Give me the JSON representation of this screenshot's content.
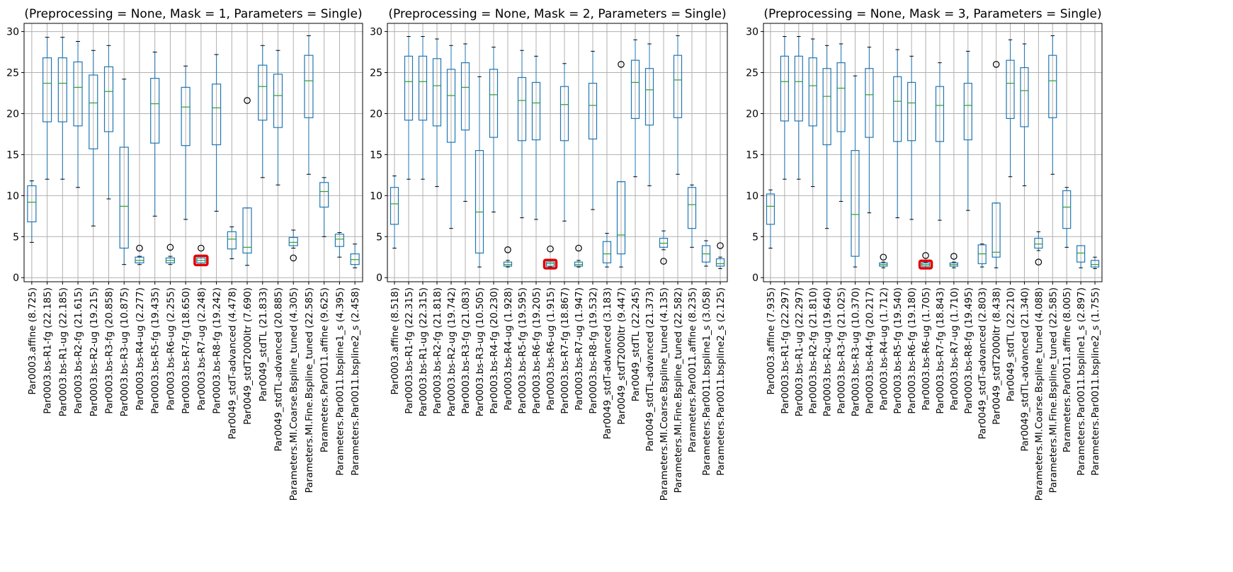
{
  "figure": {
    "colors": {
      "box": "#1f77b4",
      "median": "#2ca02c",
      "grid": "#b0b0b0",
      "axis": "#000000",
      "highlight": "#e00000"
    }
  },
  "chart_data": [
    {
      "type": "box",
      "title": "(Preprocessing = None, Mask = 1, Parameters = Single)",
      "ylim": [
        -0.5,
        31
      ],
      "yticks": [
        0,
        5,
        10,
        15,
        20,
        25,
        30
      ],
      "grid": true,
      "categories": [
        "Par0003.affine (8.725)",
        "Par0003.bs-R1-fg (22.185)",
        "Par0003.bs-R1-ug (22.185)",
        "Par0003.bs-R2-fg (21.615)",
        "Par0003.bs-R2-ug (19.215)",
        "Par0003.bs-R3-fg (20.858)",
        "Par0003.bs-R3-ug (10.875)",
        "Par0003.bs-R4-ug (2.277)",
        "Par0003.bs-R5-fg (19.435)",
        "Par0003.bs-R6-ug (2.255)",
        "Par0003.bs-R7-fg (18.650)",
        "Par0003.bs-R7-ug (2.248)",
        "Par0003.bs-R8-fg (19.242)",
        "Par0049_stdT-advanced (4.478)",
        "Par0049_stdT2000itr (7.690)",
        "Par0049_stdTL (21.833)",
        "Par0049_stdTL-advanced (20.885)",
        "Parameters.MI.Coarse.Bspline_tuned (4.305)",
        "Parameters.MI.Fine.Bspline_tuned (22.585)",
        "Parameters.Par0011.affine (9.625)",
        "Parameters.Par0011.bspline1_s (4.395)",
        "Parameters.Par0011.bspline2_s (2.458)"
      ],
      "boxes": [
        {
          "whislo": 4.3,
          "q1": 6.8,
          "med": 9.2,
          "q3": 11.2,
          "whishi": 11.8,
          "fliers": []
        },
        {
          "whislo": 12.0,
          "q1": 19.0,
          "med": 23.7,
          "q3": 26.8,
          "whishi": 29.3,
          "fliers": []
        },
        {
          "whislo": 12.0,
          "q1": 19.0,
          "med": 23.7,
          "q3": 26.8,
          "whishi": 29.3,
          "fliers": []
        },
        {
          "whislo": 11.0,
          "q1": 18.5,
          "med": 23.2,
          "q3": 26.3,
          "whishi": 28.8,
          "fliers": []
        },
        {
          "whislo": 6.3,
          "q1": 15.7,
          "med": 21.3,
          "q3": 24.7,
          "whishi": 27.7,
          "fliers": []
        },
        {
          "whislo": 9.6,
          "q1": 17.8,
          "med": 22.7,
          "q3": 25.7,
          "whishi": 28.3,
          "fliers": []
        },
        {
          "whislo": 1.6,
          "q1": 3.6,
          "med": 8.7,
          "q3": 15.9,
          "whishi": 24.2,
          "fliers": []
        },
        {
          "whislo": 1.6,
          "q1": 1.8,
          "med": 2.1,
          "q3": 2.5,
          "whishi": 2.6,
          "fliers": [
            3.6
          ]
        },
        {
          "whislo": 7.5,
          "q1": 16.4,
          "med": 21.2,
          "q3": 24.3,
          "whishi": 27.5,
          "fliers": []
        },
        {
          "whislo": 1.6,
          "q1": 1.8,
          "med": 2.1,
          "q3": 2.4,
          "whishi": 2.6,
          "fliers": [
            3.7
          ]
        },
        {
          "whislo": 7.1,
          "q1": 16.1,
          "med": 20.8,
          "q3": 23.2,
          "whishi": 25.8,
          "fliers": []
        },
        {
          "whislo": 1.6,
          "q1": 1.8,
          "med": 2.1,
          "q3": 2.4,
          "whishi": 2.6,
          "fliers": [
            3.6
          ]
        },
        {
          "whislo": 8.1,
          "q1": 16.2,
          "med": 20.7,
          "q3": 23.6,
          "whishi": 27.2,
          "fliers": []
        },
        {
          "whislo": 2.3,
          "q1": 3.5,
          "med": 4.7,
          "q3": 5.6,
          "whishi": 6.2,
          "fliers": []
        },
        {
          "whislo": 1.5,
          "q1": 3.0,
          "med": 3.7,
          "q3": 8.5,
          "whishi": 8.5,
          "fliers": [
            21.6
          ]
        },
        {
          "whislo": 12.2,
          "q1": 19.2,
          "med": 23.3,
          "q3": 25.9,
          "whishi": 28.3,
          "fliers": []
        },
        {
          "whislo": 11.3,
          "q1": 18.3,
          "med": 22.2,
          "q3": 24.8,
          "whishi": 27.7,
          "fliers": []
        },
        {
          "whislo": 3.6,
          "q1": 3.9,
          "med": 4.3,
          "q3": 4.9,
          "whishi": 5.8,
          "fliers": [
            2.4
          ]
        },
        {
          "whislo": 12.6,
          "q1": 19.5,
          "med": 24.0,
          "q3": 27.1,
          "whishi": 29.5,
          "fliers": []
        },
        {
          "whislo": 5.0,
          "q1": 8.6,
          "med": 10.5,
          "q3": 11.6,
          "whishi": 12.2,
          "fliers": []
        },
        {
          "whislo": 2.5,
          "q1": 3.8,
          "med": 4.7,
          "q3": 5.3,
          "whishi": 5.5,
          "fliers": []
        },
        {
          "whislo": 1.2,
          "q1": 1.6,
          "med": 2.2,
          "q3": 2.9,
          "whishi": 4.1,
          "fliers": []
        }
      ],
      "highlight_index": 11
    },
    {
      "type": "box",
      "title": "(Preprocessing = None, Mask = 2, Parameters = Single)",
      "ylim": [
        -0.5,
        31
      ],
      "yticks": [
        0,
        5,
        10,
        15,
        20,
        25,
        30
      ],
      "grid": true,
      "categories": [
        "Par0003.affine (8.518)",
        "Par0003.bs-R1-fg (22.315)",
        "Par0003.bs-R1-ug (22.315)",
        "Par0003.bs-R2-fg (21.818)",
        "Par0003.bs-R2-ug (19.742)",
        "Par0003.bs-R3-fg (21.083)",
        "Par0003.bs-R3-ug (10.505)",
        "Par0003.bs-R4-fg (20.230)",
        "Par0003.bs-R4-ug (1.928)",
        "Par0003.bs-R5-fg (19.595)",
        "Par0003.bs-R6-fg (19.205)",
        "Par0003.bs-R6-ug (1.915)",
        "Par0003.bs-R7-fg (18.867)",
        "Par0003.bs-R7-ug (1.947)",
        "Par0003.bs-R8-fg (19.532)",
        "Par0049_stdT-advanced (3.183)",
        "Par0049_stdT2000itr (9.447)",
        "Par0049_stdTL (22.245)",
        "Par0049_stdTL-advanced (21.373)",
        "Parameters.MI.Coarse.Bspline_tuned (4.135)",
        "Parameters.MI.Fine.Bspline_tuned (22.582)",
        "Parameters.Par0011.affine (8.235)",
        "Parameters.Par0011.bspline1_s (3.058)",
        "Parameters.Par0011.bspline2_s (2.125)"
      ],
      "boxes": [
        {
          "whislo": 3.6,
          "q1": 6.5,
          "med": 9.0,
          "q3": 11.0,
          "whishi": 12.4,
          "fliers": []
        },
        {
          "whislo": 12.0,
          "q1": 19.2,
          "med": 23.9,
          "q3": 27.0,
          "whishi": 29.4,
          "fliers": []
        },
        {
          "whislo": 12.0,
          "q1": 19.2,
          "med": 23.9,
          "q3": 27.0,
          "whishi": 29.4,
          "fliers": []
        },
        {
          "whislo": 11.1,
          "q1": 18.5,
          "med": 23.4,
          "q3": 26.7,
          "whishi": 29.1,
          "fliers": []
        },
        {
          "whislo": 6.0,
          "q1": 16.5,
          "med": 22.2,
          "q3": 25.4,
          "whishi": 28.3,
          "fliers": []
        },
        {
          "whislo": 9.3,
          "q1": 18.0,
          "med": 23.2,
          "q3": 26.2,
          "whishi": 28.5,
          "fliers": []
        },
        {
          "whislo": 1.3,
          "q1": 3.0,
          "med": 8.0,
          "q3": 15.5,
          "whishi": 24.5,
          "fliers": []
        },
        {
          "whislo": 8.0,
          "q1": 17.1,
          "med": 22.3,
          "q3": 25.4,
          "whishi": 28.1,
          "fliers": []
        },
        {
          "whislo": 1.3,
          "q1": 1.4,
          "med": 1.6,
          "q3": 1.9,
          "whishi": 2.1,
          "fliers": [
            3.4
          ]
        },
        {
          "whislo": 7.3,
          "q1": 16.7,
          "med": 21.6,
          "q3": 24.4,
          "whishi": 27.7,
          "fliers": []
        },
        {
          "whislo": 7.1,
          "q1": 16.8,
          "med": 21.3,
          "q3": 23.8,
          "whishi": 27.0,
          "fliers": []
        },
        {
          "whislo": 1.3,
          "q1": 1.4,
          "med": 1.7,
          "q3": 1.9,
          "whishi": 2.1,
          "fliers": [
            3.5
          ]
        },
        {
          "whislo": 6.9,
          "q1": 16.7,
          "med": 21.1,
          "q3": 23.3,
          "whishi": 26.1,
          "fliers": []
        },
        {
          "whislo": 1.3,
          "q1": 1.4,
          "med": 1.6,
          "q3": 1.9,
          "whishi": 2.1,
          "fliers": [
            3.6
          ]
        },
        {
          "whislo": 8.3,
          "q1": 16.9,
          "med": 21.0,
          "q3": 23.7,
          "whishi": 27.6,
          "fliers": []
        },
        {
          "whislo": 1.3,
          "q1": 1.8,
          "med": 2.9,
          "q3": 4.4,
          "whishi": 5.4,
          "fliers": []
        },
        {
          "whislo": 1.3,
          "q1": 2.9,
          "med": 5.2,
          "q3": 11.7,
          "whishi": 11.7,
          "fliers": [
            26.0
          ]
        },
        {
          "whislo": 12.3,
          "q1": 19.4,
          "med": 23.8,
          "q3": 26.5,
          "whishi": 29.0,
          "fliers": []
        },
        {
          "whislo": 11.2,
          "q1": 18.6,
          "med": 22.9,
          "q3": 25.5,
          "whishi": 28.5,
          "fliers": []
        },
        {
          "whislo": 3.4,
          "q1": 3.7,
          "med": 4.2,
          "q3": 4.8,
          "whishi": 5.7,
          "fliers": [
            2.0
          ]
        },
        {
          "whislo": 12.6,
          "q1": 19.5,
          "med": 24.1,
          "q3": 27.1,
          "whishi": 29.5,
          "fliers": []
        },
        {
          "whislo": 3.7,
          "q1": 6.0,
          "med": 8.9,
          "q3": 11.0,
          "whishi": 11.3,
          "fliers": []
        },
        {
          "whislo": 1.4,
          "q1": 1.9,
          "med": 2.9,
          "q3": 3.9,
          "whishi": 4.5,
          "fliers": []
        },
        {
          "whislo": 1.1,
          "q1": 1.4,
          "med": 1.7,
          "q3": 2.3,
          "whishi": 2.5,
          "fliers": [
            3.9
          ]
        }
      ],
      "highlight_index": 11
    },
    {
      "type": "box",
      "title": "(Preprocessing = None, Mask = 3, Parameters = Single)",
      "ylim": [
        -0.5,
        31
      ],
      "yticks": [
        0,
        5,
        10,
        15,
        20,
        25,
        30
      ],
      "grid": true,
      "categories": [
        "Par0003.affine (7.935)",
        "Par0003.bs-R1-fg (22.297)",
        "Par0003.bs-R1-ug (22.297)",
        "Par0003.bs-R2-fg (21.810)",
        "Par0003.bs-R2-ug (19.640)",
        "Par0003.bs-R3-fg (21.025)",
        "Par0003.bs-R3-ug (10.370)",
        "Par0003.bs-R4-fg (20.217)",
        "Par0003.bs-R4-ug (1.712)",
        "Par0003.bs-R5-fg (19.540)",
        "Par0003.bs-R6-fg (19.180)",
        "Par0003.bs-R6-ug (1.705)",
        "Par0003.bs-R7-fg (18.843)",
        "Par0003.bs-R7-ug (1.710)",
        "Par0003.bs-R8-fg (19.495)",
        "Par0049_stdT-advanced (2.803)",
        "Par0049_stdT2000itr (8.438)",
        "Par0049_stdTL (22.210)",
        "Par0049_stdTL-advanced (21.340)",
        "Parameters.MI.Coarse.Bspline_tuned (4.088)",
        "Parameters.MI.Fine.Bspline_tuned (22.585)",
        "Parameters.Par0011.affine (8.005)",
        "Parameters.Par0011.bspline1_s (2.897)",
        "Parameters.Par0011.bspline2_s (1.755)"
      ],
      "boxes": [
        {
          "whislo": 3.6,
          "q1": 6.5,
          "med": 8.7,
          "q3": 10.2,
          "whishi": 10.7,
          "fliers": []
        },
        {
          "whislo": 12.0,
          "q1": 19.1,
          "med": 23.9,
          "q3": 27.0,
          "whishi": 29.4,
          "fliers": []
        },
        {
          "whislo": 12.0,
          "q1": 19.1,
          "med": 23.9,
          "q3": 27.0,
          "whishi": 29.4,
          "fliers": []
        },
        {
          "whislo": 11.1,
          "q1": 18.5,
          "med": 23.4,
          "q3": 26.8,
          "whishi": 29.1,
          "fliers": []
        },
        {
          "whislo": 6.0,
          "q1": 16.2,
          "med": 22.1,
          "q3": 25.5,
          "whishi": 28.3,
          "fliers": []
        },
        {
          "whislo": 9.3,
          "q1": 17.8,
          "med": 23.1,
          "q3": 26.2,
          "whishi": 28.5,
          "fliers": []
        },
        {
          "whislo": 1.3,
          "q1": 2.6,
          "med": 7.7,
          "q3": 15.5,
          "whishi": 24.6,
          "fliers": []
        },
        {
          "whislo": 7.9,
          "q1": 17.1,
          "med": 22.3,
          "q3": 25.5,
          "whishi": 28.1,
          "fliers": []
        },
        {
          "whislo": 1.2,
          "q1": 1.4,
          "med": 1.6,
          "q3": 1.8,
          "whishi": 1.9,
          "fliers": [
            2.5
          ]
        },
        {
          "whislo": 7.3,
          "q1": 16.6,
          "med": 21.5,
          "q3": 24.5,
          "whishi": 27.8,
          "fliers": []
        },
        {
          "whislo": 7.1,
          "q1": 16.7,
          "med": 21.3,
          "q3": 23.8,
          "whishi": 27.0,
          "fliers": []
        },
        {
          "whislo": 1.2,
          "q1": 1.4,
          "med": 1.6,
          "q3": 1.8,
          "whishi": 1.9,
          "fliers": [
            2.7
          ]
        },
        {
          "whislo": 7.0,
          "q1": 16.6,
          "med": 21.0,
          "q3": 23.3,
          "whishi": 26.2,
          "fliers": []
        },
        {
          "whislo": 1.2,
          "q1": 1.4,
          "med": 1.6,
          "q3": 1.8,
          "whishi": 1.9,
          "fliers": [
            2.6
          ]
        },
        {
          "whislo": 8.2,
          "q1": 16.8,
          "med": 21.0,
          "q3": 23.7,
          "whishi": 27.6,
          "fliers": []
        },
        {
          "whislo": 1.3,
          "q1": 1.7,
          "med": 2.9,
          "q3": 4.0,
          "whishi": 4.1,
          "fliers": []
        },
        {
          "whislo": 1.2,
          "q1": 2.5,
          "med": 3.1,
          "q3": 9.1,
          "whishi": 9.1,
          "fliers": [
            26.0
          ]
        },
        {
          "whislo": 12.3,
          "q1": 19.4,
          "med": 23.7,
          "q3": 26.5,
          "whishi": 29.0,
          "fliers": []
        },
        {
          "whislo": 11.2,
          "q1": 18.4,
          "med": 22.8,
          "q3": 25.6,
          "whishi": 28.5,
          "fliers": []
        },
        {
          "whislo": 3.3,
          "q1": 3.6,
          "med": 4.1,
          "q3": 4.8,
          "whishi": 5.6,
          "fliers": [
            1.9
          ]
        },
        {
          "whislo": 12.6,
          "q1": 19.5,
          "med": 24.0,
          "q3": 27.1,
          "whishi": 29.5,
          "fliers": []
        },
        {
          "whislo": 3.7,
          "q1": 6.0,
          "med": 8.6,
          "q3": 10.6,
          "whishi": 11.0,
          "fliers": []
        },
        {
          "whislo": 1.2,
          "q1": 1.9,
          "med": 3.0,
          "q3": 3.9,
          "whishi": 3.9,
          "fliers": []
        },
        {
          "whislo": 1.1,
          "q1": 1.3,
          "med": 1.6,
          "q3": 2.1,
          "whishi": 2.5,
          "fliers": []
        }
      ],
      "highlight_index": 11
    }
  ]
}
